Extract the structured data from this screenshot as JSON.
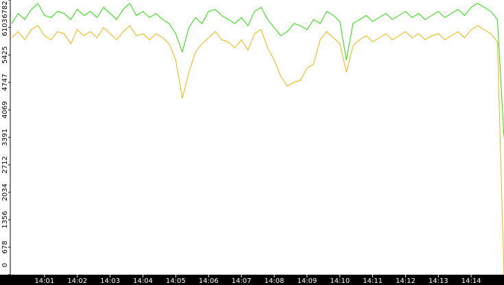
{
  "chart_data": {
    "type": "line",
    "x": [
      0,
      0.2,
      0.4,
      0.6,
      0.8,
      1.0,
      1.2,
      1.4,
      1.6,
      1.8,
      2.0,
      2.2,
      2.4,
      2.6,
      2.8,
      3.0,
      3.2,
      3.4,
      3.6,
      3.8,
      4.0,
      4.2,
      4.4,
      4.6,
      4.8,
      5.0,
      5.2,
      5.4,
      5.6,
      5.8,
      6.0,
      6.2,
      6.4,
      6.6,
      6.8,
      7.0,
      7.2,
      7.4,
      7.6,
      7.8,
      8.0,
      8.2,
      8.4,
      8.6,
      8.8,
      9.0,
      9.2,
      9.4,
      9.6,
      9.8,
      10.0,
      10.2,
      10.4,
      10.6,
      10.8,
      11.0,
      11.2,
      11.4,
      11.6,
      11.8,
      12.0,
      12.2,
      12.4,
      12.6,
      12.8,
      13.0,
      13.2,
      13.4,
      13.6,
      13.8,
      14.0,
      14.2,
      14.4,
      14.6,
      14.8,
      15.0
    ],
    "series": [
      {
        "color": "#22dd00",
        "values": [
          6200,
          6450,
          6300,
          6550,
          6700,
          6400,
          6350,
          6500,
          6450,
          6300,
          6550,
          6400,
          6500,
          6350,
          6600,
          6450,
          6300,
          6550,
          6700,
          6400,
          6500,
          6350,
          6450,
          6300,
          6200,
          5950,
          5500,
          6100,
          6350,
          6200,
          6500,
          6550,
          6400,
          6300,
          6200,
          6350,
          6150,
          6500,
          6600,
          6300,
          6100,
          5900,
          6000,
          6200,
          6150,
          6050,
          6300,
          6200,
          6500,
          6400,
          6250,
          5300,
          6200,
          6300,
          6400,
          6250,
          6350,
          6450,
          6300,
          6400,
          6500,
          6350,
          6450,
          6300,
          6400,
          6500,
          6350,
          6450,
          6550,
          6400,
          6600,
          6700,
          6600,
          6500,
          6300,
          3400
        ]
      },
      {
        "color": "#f0b400",
        "values": [
          5850,
          6000,
          5800,
          6050,
          6150,
          5900,
          5800,
          6000,
          5950,
          5700,
          6050,
          5900,
          6000,
          5850,
          6100,
          5950,
          5800,
          6000,
          6150,
          5900,
          5950,
          5800,
          5950,
          5850,
          5700,
          5300,
          4350,
          5000,
          5500,
          5700,
          5850,
          6000,
          5800,
          5750,
          5600,
          5800,
          5550,
          5950,
          6050,
          5600,
          5300,
          4900,
          4650,
          4750,
          4800,
          5100,
          5200,
          5800,
          6000,
          5850,
          5700,
          5000,
          5650,
          5800,
          5900,
          5750,
          5850,
          5950,
          5800,
          5900,
          6000,
          5850,
          5950,
          5800,
          5900,
          5950,
          5800,
          5900,
          6000,
          5850,
          6050,
          6150,
          6050,
          5950,
          5750,
          0
        ]
      }
    ],
    "xlim": [
      0,
      15
    ],
    "xticks": [
      {
        "value": 1,
        "label": "14:01"
      },
      {
        "value": 2,
        "label": "14:02"
      },
      {
        "value": 3,
        "label": "14:03"
      },
      {
        "value": 4,
        "label": "14:04"
      },
      {
        "value": 5,
        "label": "14:05"
      },
      {
        "value": 6,
        "label": "14:06"
      },
      {
        "value": 7,
        "label": "14:07"
      },
      {
        "value": 8,
        "label": "14:08"
      },
      {
        "value": 9,
        "label": "14:09"
      },
      {
        "value": 10,
        "label": "14:10"
      },
      {
        "value": 11,
        "label": "14:11"
      },
      {
        "value": 12,
        "label": "14:12"
      },
      {
        "value": 13,
        "label": "14:13"
      },
      {
        "value": 14,
        "label": "14:14"
      }
    ],
    "ylim": [
      0,
      6782
    ],
    "yticks": [
      0,
      678,
      1356,
      2034,
      2712,
      3391,
      4069,
      4747,
      5425,
      6103,
      6782
    ]
  }
}
